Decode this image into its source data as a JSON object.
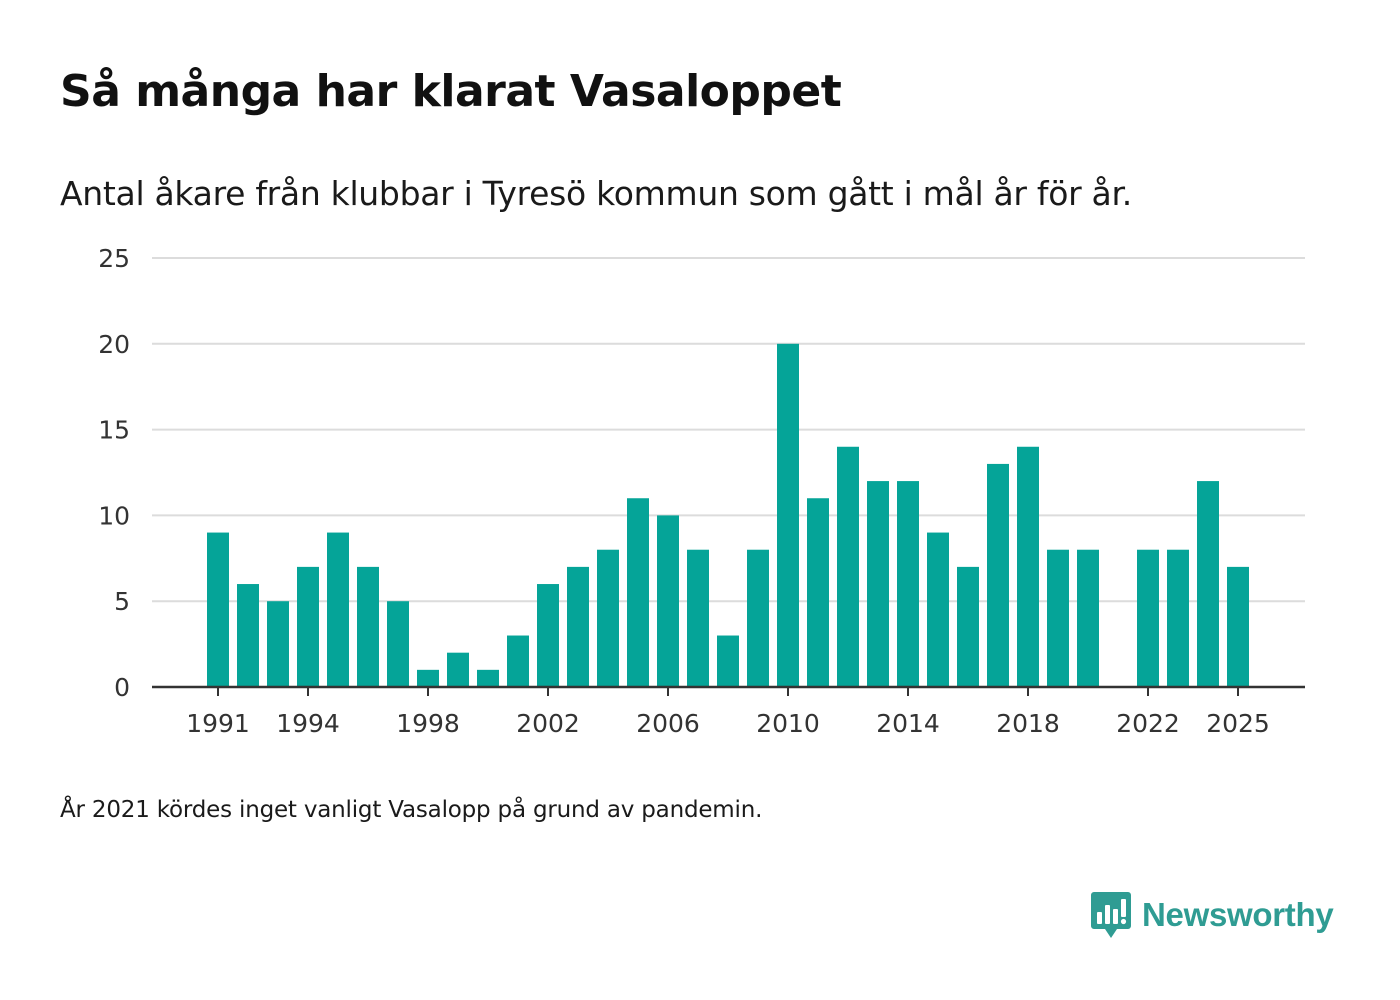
{
  "chart_data": {
    "type": "bar",
    "title": "Så många har klarat Vasaloppet",
    "subtitle": "Antal åkare från klubbar i Tyresö kommun som gått i mål år för år.",
    "xlabel": "",
    "ylabel": "",
    "x": [
      1991,
      1992,
      1993,
      1994,
      1995,
      1996,
      1997,
      1998,
      1999,
      2000,
      2001,
      2002,
      2003,
      2004,
      2005,
      2006,
      2007,
      2008,
      2009,
      2010,
      2011,
      2012,
      2013,
      2014,
      2015,
      2016,
      2017,
      2018,
      2019,
      2020,
      2021,
      2022,
      2023,
      2024,
      2025
    ],
    "values": [
      9,
      6,
      5,
      7,
      9,
      7,
      5,
      1,
      2,
      1,
      3,
      6,
      7,
      8,
      11,
      10,
      8,
      3,
      8,
      20,
      11,
      14,
      12,
      12,
      9,
      7,
      13,
      14,
      8,
      8,
      null,
      8,
      8,
      12,
      7
    ],
    "ylim": [
      0,
      25
    ],
    "yticks": [
      0,
      5,
      10,
      15,
      20,
      25
    ],
    "xticks": [
      1991,
      1994,
      1998,
      2002,
      2006,
      2010,
      2014,
      2018,
      2022,
      2025
    ],
    "grid": true,
    "bar_color": "#05a498",
    "footnote": "År 2021 kördes inget vanligt Vasalopp på grund av pandemin."
  },
  "brand": {
    "name": "Newsworthy",
    "color": "#2f9c93",
    "icon": "bar-chart-speech-bubble-icon"
  }
}
